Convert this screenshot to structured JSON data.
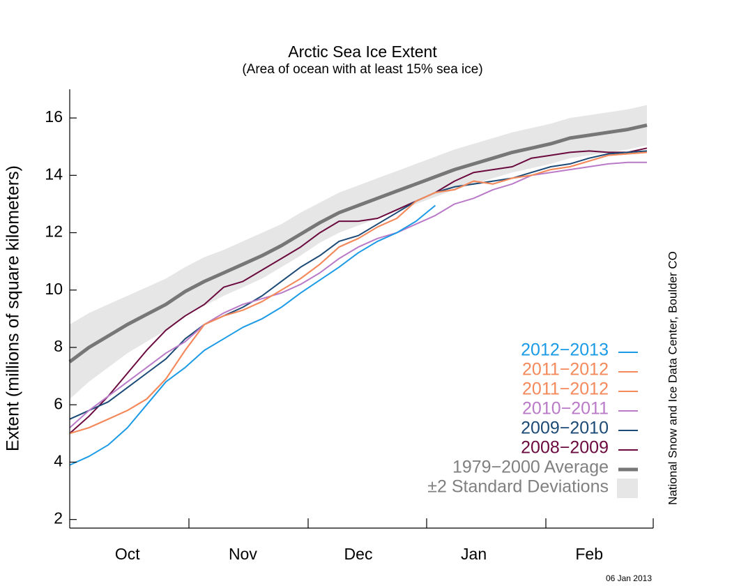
{
  "chart_data": {
    "type": "line",
    "title": "Arctic Sea Ice Extent",
    "subtitle": "(Area of ocean with at least 15% sea ice)",
    "y_label": "Extent (millions of square kilometers)",
    "source": "National Snow and Ice Data Center, Boulder CO",
    "date": "06 Jan 2013",
    "categories": [
      null,
      null,
      null,
      "Oct",
      null,
      null,
      null,
      null,
      null,
      "Nov",
      null,
      null,
      null,
      null,
      null,
      "Dec",
      null,
      null,
      null,
      null,
      null,
      "Jan",
      null,
      null,
      null,
      null,
      null,
      "Feb",
      null,
      null,
      null
    ],
    "ylim": [
      1.7,
      17
    ],
    "yticks": [
      2,
      4,
      6,
      8,
      10,
      12,
      14,
      16
    ],
    "band": {
      "name": "±2 Standard Deviations",
      "color": "#e6e6e6",
      "upper": [
        8.8,
        9.2,
        9.5,
        9.8,
        10.1,
        10.4,
        10.8,
        11.15,
        11.4,
        11.7,
        12.0,
        12.3,
        12.7,
        13.05,
        13.4,
        13.65,
        13.9,
        14.15,
        14.4,
        14.65,
        14.9,
        15.1,
        15.3,
        15.5,
        15.65,
        15.8,
        16.0,
        16.1,
        16.2,
        16.3,
        16.45
      ],
      "lower": [
        6.2,
        6.8,
        7.3,
        7.8,
        8.2,
        8.6,
        9.1,
        9.45,
        9.8,
        10.1,
        10.4,
        10.8,
        11.2,
        11.65,
        12.0,
        12.25,
        12.5,
        12.75,
        13.0,
        13.25,
        13.5,
        13.7,
        13.9,
        14.1,
        14.25,
        14.4,
        14.6,
        14.7,
        14.8,
        14.9,
        15.05
      ]
    },
    "series": [
      {
        "name": "2012−2013",
        "color": "#1b9be6",
        "values": [
          3.9,
          4.2,
          4.6,
          5.2,
          6.0,
          6.8,
          7.3,
          7.9,
          8.3,
          8.7,
          9.0,
          9.4,
          9.9,
          10.35,
          10.8,
          11.3,
          11.7,
          12.0,
          12.4,
          12.95,
          null,
          null,
          null,
          null,
          null,
          null,
          null,
          null,
          null,
          null,
          null
        ]
      },
      {
        "name": "2011−2012",
        "color": "#f4895b",
        "values": [
          5.0,
          5.2,
          5.5,
          5.8,
          6.2,
          6.9,
          7.9,
          8.8,
          9.1,
          9.3,
          9.6,
          10.0,
          10.4,
          10.9,
          11.5,
          11.8,
          12.2,
          12.5,
          13.1,
          13.4,
          13.5,
          13.8,
          13.7,
          13.9,
          14.0,
          14.2,
          14.3,
          14.5,
          14.7,
          14.75,
          14.8
        ]
      },
      {
        "name": "2011−2012",
        "color": "#f4895b",
        "values": [
          5.0,
          5.2,
          5.5,
          5.8,
          6.2,
          6.9,
          7.9,
          8.8,
          9.1,
          9.3,
          9.6,
          10.0,
          10.4,
          10.9,
          11.5,
          11.8,
          12.2,
          12.5,
          13.1,
          13.4,
          13.5,
          13.8,
          13.7,
          13.9,
          14.0,
          14.2,
          14.3,
          14.5,
          14.7,
          14.75,
          14.8
        ]
      },
      {
        "name": "2010−2011",
        "color": "#b97ac8",
        "values": [
          5.2,
          5.8,
          6.3,
          6.8,
          7.3,
          7.8,
          8.2,
          8.8,
          9.2,
          9.5,
          9.7,
          9.9,
          10.2,
          10.6,
          11.1,
          11.5,
          11.8,
          12.0,
          12.3,
          12.6,
          13.0,
          13.2,
          13.5,
          13.7,
          14.0,
          14.1,
          14.2,
          14.3,
          14.4,
          14.45,
          14.45
        ]
      },
      {
        "name": "2009−2010",
        "color": "#1c4a76",
        "values": [
          5.5,
          5.8,
          6.1,
          6.6,
          7.1,
          7.6,
          8.3,
          8.8,
          9.1,
          9.4,
          9.8,
          10.3,
          10.8,
          11.2,
          11.7,
          11.9,
          12.3,
          12.7,
          13.1,
          13.4,
          13.6,
          13.7,
          13.8,
          13.9,
          14.1,
          14.3,
          14.4,
          14.6,
          14.75,
          14.8,
          14.85
        ]
      },
      {
        "name": "2008−2009",
        "color": "#6a0a3e",
        "values": [
          5.0,
          5.6,
          6.3,
          7.1,
          7.9,
          8.6,
          9.1,
          9.5,
          10.1,
          10.3,
          10.7,
          11.1,
          11.5,
          12.0,
          12.4,
          12.4,
          12.5,
          12.8,
          13.1,
          13.4,
          13.8,
          14.1,
          14.2,
          14.3,
          14.6,
          14.7,
          14.8,
          14.85,
          14.8,
          14.8,
          14.95
        ]
      },
      {
        "name": "1979−2000 Average",
        "color": "#777777",
        "line_width": 5,
        "values": [
          7.5,
          8.0,
          8.4,
          8.8,
          9.15,
          9.5,
          9.95,
          10.3,
          10.6,
          10.9,
          11.2,
          11.55,
          11.95,
          12.35,
          12.7,
          12.95,
          13.2,
          13.45,
          13.7,
          13.95,
          14.2,
          14.4,
          14.6,
          14.8,
          14.95,
          15.1,
          15.3,
          15.4,
          15.5,
          15.6,
          15.75
        ]
      }
    ]
  }
}
